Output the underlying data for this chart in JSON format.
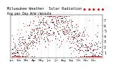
{
  "title": "Milwaukee Weather  Solar Radiation",
  "subtitle": "Avg per Day W/m²/minute",
  "background_color": "#ffffff",
  "plot_bg": "#ffffff",
  "ylim": [
    0,
    8
  ],
  "yticks": [
    1,
    2,
    3,
    4,
    5,
    6,
    7
  ],
  "ylabel_fontsize": 3.5,
  "xlabel_fontsize": 2.8,
  "title_fontsize": 3.8,
  "grid_color": "#bbbbbb",
  "dot_color_current": "#ff0000",
  "dot_color_avg": "#000000",
  "legend_box_color": "#ff0000",
  "n_points": 365,
  "month_ticks": [
    0,
    31,
    59,
    90,
    120,
    151,
    181,
    212,
    243,
    273,
    304,
    334,
    365
  ],
  "month_labels": [
    "Jan",
    "Feb",
    "Mar",
    "Apr",
    "May",
    "Jun",
    "Jul",
    "Aug",
    "Sep",
    "Oct",
    "Nov",
    "Dec",
    ""
  ]
}
